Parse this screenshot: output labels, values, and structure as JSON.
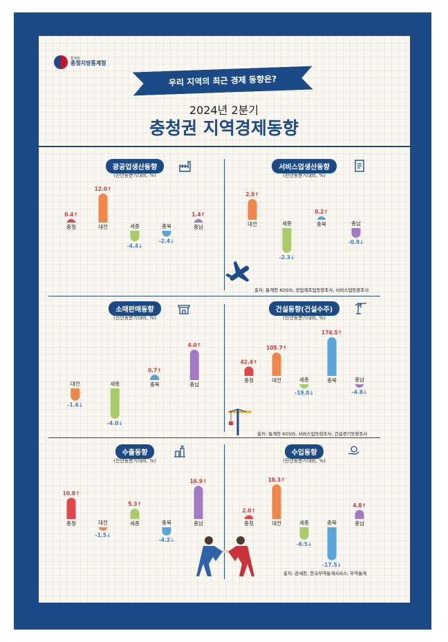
{
  "header": {
    "org_small": "통계청",
    "org_name": "충청지방통계청",
    "ribbon": "우리 지역의 최근 경제 동향은?",
    "period": "2024년 2분기",
    "title": "충청권 지역경제동향"
  },
  "colors": {
    "충청": "#e0464b",
    "대전": "#f0874a",
    "세종": "#a9cc6b",
    "충북": "#5aa4dc",
    "충남": "#a379c6",
    "up": "#d4373c",
    "down": "#3f7cc8",
    "navy": "#1b4a87"
  },
  "sources": {
    "row1": "출처: 통계청 KOSIS, 광업제조업동향조사, 서비스업동향조사",
    "row2": "출처: 통계청 KOSIS, 서비스업동향조사, 건설경기동향조사",
    "row3": "출처: 관세청, 한국무역통계서비스, 무역통계"
  },
  "icons": [
    "factory-icon",
    "document-icon",
    "storefront-icon",
    "crane-icon",
    "export-icon",
    "import-icon",
    "airplane-icon"
  ],
  "chart_data": [
    {
      "type": "bar",
      "title": "광공업생산동향",
      "subtitle": "(전년동분기대비, %)",
      "categories": [
        "충청",
        "대전",
        "세종",
        "충북",
        "충남"
      ],
      "values": [
        0.4,
        12.0,
        -4.4,
        -2.4,
        1.4
      ],
      "labels": [
        "0.4↑",
        "12.0↑",
        "-4.4↓",
        "-2.4↓",
        "1.4↑"
      ],
      "icon": "factory-icon"
    },
    {
      "type": "bar",
      "title": "서비스업생산동향",
      "subtitle": "(전년동분기대비, %)",
      "categories": [
        "대전",
        "세종",
        "충북",
        "충남"
      ],
      "values": [
        2.0,
        -2.3,
        0.2,
        -0.9
      ],
      "labels": [
        "2.0↑",
        "-2.3↓",
        "0.2↑",
        "-0.9↓"
      ],
      "icon": "document-icon"
    },
    {
      "type": "bar",
      "title": "소매판매동향",
      "subtitle": "(전년동분기대비, %)",
      "categories": [
        "대전",
        "세종",
        "충북",
        "충남"
      ],
      "values": [
        -1.6,
        -4.0,
        0.7,
        4.0
      ],
      "labels": [
        "-1.6↓",
        "-4.0↓",
        "0.7↑",
        "4.0↑"
      ],
      "icon": "storefront-icon"
    },
    {
      "type": "bar",
      "title": "건설동향(건설수주)",
      "subtitle": "(전년동분기대비, %)",
      "categories": [
        "충청",
        "대전",
        "세종",
        "충북",
        "충남"
      ],
      "values": [
        42.4,
        105.7,
        -19.0,
        174.5,
        -4.8
      ],
      "labels": [
        "42.4↑",
        "105.7↑",
        "-19.0↓",
        "174.5↑",
        "-4.8↓"
      ],
      "icon": "crane-icon"
    },
    {
      "type": "bar",
      "title": "수출동향",
      "subtitle": "(전년동분기대비, %)",
      "categories": [
        "충청",
        "대전",
        "세종",
        "충북",
        "충남"
      ],
      "values": [
        10.8,
        -1.5,
        5.3,
        -4.2,
        16.9
      ],
      "labels": [
        "10.8↑",
        "-1.5↓",
        "5.3↑",
        "-4.2↓",
        "16.9↑"
      ],
      "icon": "export-icon"
    },
    {
      "type": "bar",
      "title": "수입동향",
      "subtitle": "(전년동분기대비, %)",
      "categories": [
        "충청",
        "대전",
        "세종",
        "충북",
        "충남"
      ],
      "values": [
        2.0,
        18.3,
        -6.5,
        -17.5,
        4.8
      ],
      "labels": [
        "2.0↑",
        "18.3↑",
        "-6.5↓",
        "-17.5↓",
        "4.8↑"
      ],
      "icon": "import-icon"
    }
  ]
}
